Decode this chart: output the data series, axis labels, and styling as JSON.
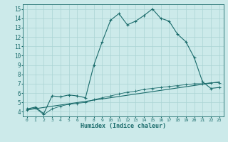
{
  "xlabel": "Humidex (Indice chaleur)",
  "background_color": "#cceaea",
  "line_color": "#1a6b6b",
  "grid_color": "#aad4d4",
  "xlim": [
    -0.5,
    23.5
  ],
  "ylim": [
    3.5,
    15.5
  ],
  "xticks": [
    0,
    1,
    2,
    3,
    4,
    5,
    6,
    7,
    8,
    9,
    10,
    11,
    12,
    13,
    14,
    15,
    16,
    17,
    18,
    19,
    20,
    21,
    22,
    23
  ],
  "yticks": [
    4,
    5,
    6,
    7,
    8,
    9,
    10,
    11,
    12,
    13,
    14,
    15
  ],
  "series1_x": [
    0,
    1,
    2,
    3,
    4,
    5,
    6,
    7,
    8,
    9,
    10,
    11,
    12,
    13,
    14,
    15,
    16,
    17,
    18,
    19,
    20,
    21,
    22,
    23
  ],
  "series1_y": [
    4.3,
    4.5,
    3.8,
    5.7,
    5.6,
    5.8,
    5.7,
    5.5,
    9.0,
    11.5,
    13.8,
    14.5,
    13.3,
    13.7,
    14.3,
    15.0,
    14.0,
    13.7,
    12.3,
    11.5,
    9.8,
    7.2,
    6.5,
    6.6
  ],
  "series2_x": [
    0,
    23
  ],
  "series2_y": [
    4.2,
    7.2
  ],
  "series3_x": [
    0,
    1,
    2,
    3,
    4,
    5,
    6,
    7,
    8,
    9,
    10,
    11,
    12,
    13,
    14,
    15,
    16,
    17,
    18,
    19,
    20,
    21,
    22,
    23
  ],
  "series3_y": [
    4.2,
    4.4,
    3.7,
    4.3,
    4.6,
    4.8,
    4.9,
    5.0,
    5.3,
    5.5,
    5.7,
    5.9,
    6.1,
    6.2,
    6.4,
    6.5,
    6.6,
    6.7,
    6.8,
    6.9,
    7.0,
    7.0,
    7.1,
    7.1
  ]
}
